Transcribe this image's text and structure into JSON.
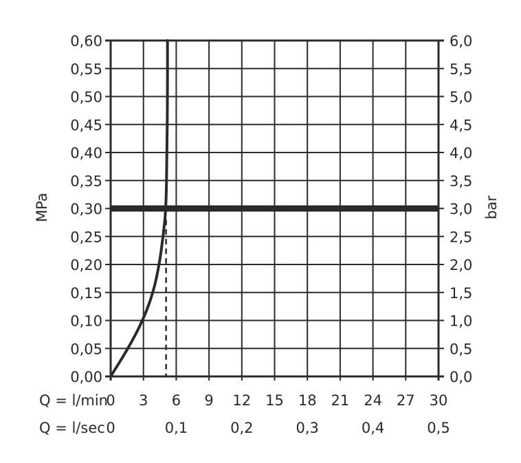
{
  "chart_data": {
    "type": "line",
    "xlabel_rows": [
      {
        "label": "Q = l/min",
        "ticks": [
          "0",
          "3",
          "6",
          "9",
          "12",
          "15",
          "18",
          "21",
          "24",
          "27",
          "30"
        ],
        "values": [
          0,
          3,
          6,
          9,
          12,
          15,
          18,
          21,
          24,
          27,
          30
        ]
      },
      {
        "label": "Q = l/sec",
        "ticks": [
          "0",
          "0,1",
          "0,2",
          "0,3",
          "0,4",
          "0,5"
        ],
        "values": [
          0,
          6,
          12,
          18,
          24,
          30
        ]
      }
    ],
    "xlim": [
      0,
      30
    ],
    "ylabel_left": "MPa",
    "ylabel_right": "bar",
    "ylim": [
      0,
      0.6
    ],
    "yticks_left": [
      "0,00",
      "0,05",
      "0,10",
      "0,15",
      "0,20",
      "0,25",
      "0,30",
      "0,35",
      "0,40",
      "0,45",
      "0,50",
      "0,55",
      "0,60"
    ],
    "yticks_right": [
      "0,0",
      "0,5",
      "1,0",
      "1,5",
      "2,0",
      "2,5",
      "3,0",
      "3,5",
      "4,0",
      "4,5",
      "5,0",
      "5,5",
      "6,0"
    ],
    "grid": true,
    "series": [
      {
        "x": [
          0,
          1.6,
          2.95,
          3.9,
          4.45,
          4.8,
          5.07,
          5.15,
          5.2,
          5.2
        ],
        "y": [
          0,
          0.05,
          0.1,
          0.15,
          0.2,
          0.25,
          0.3,
          0.4,
          0.5,
          0.6
        ],
        "color": "#2a2a2a"
      }
    ],
    "reference_lines": [
      {
        "orientation": "horizontal",
        "y": 0.3,
        "style": "thick"
      },
      {
        "orientation": "vertical",
        "x": 5.07,
        "y_range": [
          0,
          0.28
        ],
        "style": "dashed"
      }
    ]
  }
}
